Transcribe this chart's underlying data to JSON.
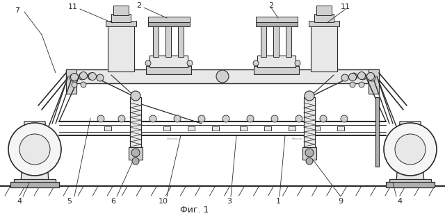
{
  "title": "Фиг. 1",
  "bg_color": "#ffffff",
  "line_color": "#2a2a2a",
  "gray_light": "#e8e8e8",
  "gray_mid": "#d0d0d0",
  "gray_dark": "#b0b0b0",
  "fig_width": 6.4,
  "fig_height": 3.14,
  "dpi": 100
}
